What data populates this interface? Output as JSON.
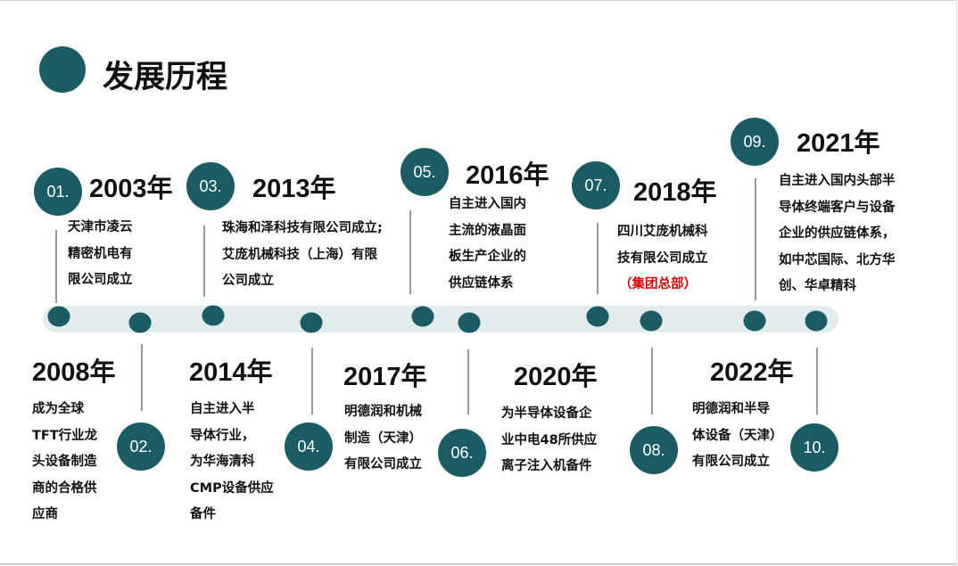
{
  "title": "发展历程",
  "colors": {
    "accent": "#1b5c64",
    "track": "#e3ecec",
    "highlight": "#e00000"
  },
  "top": [
    {
      "num": "01.",
      "year": "2003年",
      "lines": [
        "天津市凌云",
        "精密机电有",
        "限公司成立"
      ]
    },
    {
      "num": "03.",
      "year": "2013年",
      "lines": [
        "珠海和泽科技有限公司成立;",
        "艾庞机械科技（上海）有限",
        "公司成立"
      ]
    },
    {
      "num": "05.",
      "year": "2016年",
      "lines": [
        "自主进入国内",
        "主流的液晶面",
        "板生产企业的",
        "供应链体系"
      ]
    },
    {
      "num": "07.",
      "year": "2018年",
      "lines": [
        "四川艾庞机械科",
        "技有限公司成立"
      ],
      "note": "（集团总部）"
    },
    {
      "num": "09.",
      "year": "2021年",
      "lines": [
        "自主进入国内头部半",
        "导体终端客户与设备",
        "企业的供应链体系，",
        "如中芯国际、北方华",
        "创、华卓精科"
      ]
    }
  ],
  "bottom": [
    {
      "num": "02.",
      "year": "2008年",
      "lines": [
        "成为全球",
        "TFT行业龙",
        "头设备制造",
        "商的合格供",
        "应商"
      ]
    },
    {
      "num": "04.",
      "year": "2014年",
      "lines": [
        "自主进入半",
        "导体行业，",
        "为华海清科",
        "CMP设备供应",
        "备件"
      ]
    },
    {
      "num": "06.",
      "year": "2017年",
      "lines": [
        "明德润和机械",
        "制造（天津）",
        "有限公司成立"
      ]
    },
    {
      "num": "08.",
      "year": "2020年",
      "lines": [
        "为半导体设备企",
        "业中电48所供应",
        "离子注入机备件"
      ]
    },
    {
      "num": "10.",
      "year": "2022年",
      "lines": [
        "明德润和半导",
        "体设备（天津）",
        "有限公司成立"
      ]
    }
  ]
}
